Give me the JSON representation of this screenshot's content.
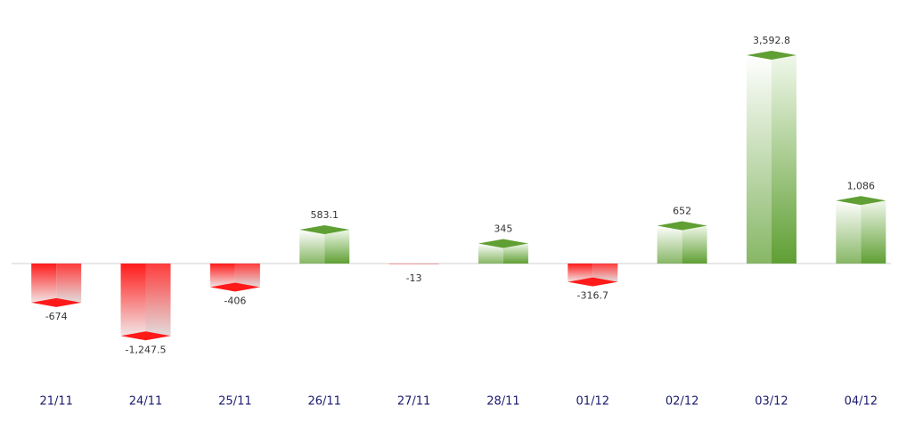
{
  "chart_data": {
    "type": "bar",
    "categories": [
      "21/11",
      "24/11",
      "25/11",
      "26/11",
      "27/11",
      "28/11",
      "01/12",
      "02/12",
      "03/12",
      "04/12"
    ],
    "values": [
      -674,
      -1247.5,
      -406,
      583.1,
      -13,
      345,
      -316.7,
      652,
      3592.8,
      1086
    ],
    "value_labels": [
      "-674",
      "-1,247.5",
      "-406",
      "583.1",
      "-13",
      "345",
      "-316.7",
      "652",
      "3,592.8",
      "1,086"
    ],
    "positive_color": "#5f9f33",
    "negative_color": "#ff1a1a",
    "category_color": "#1a1a6e"
  }
}
